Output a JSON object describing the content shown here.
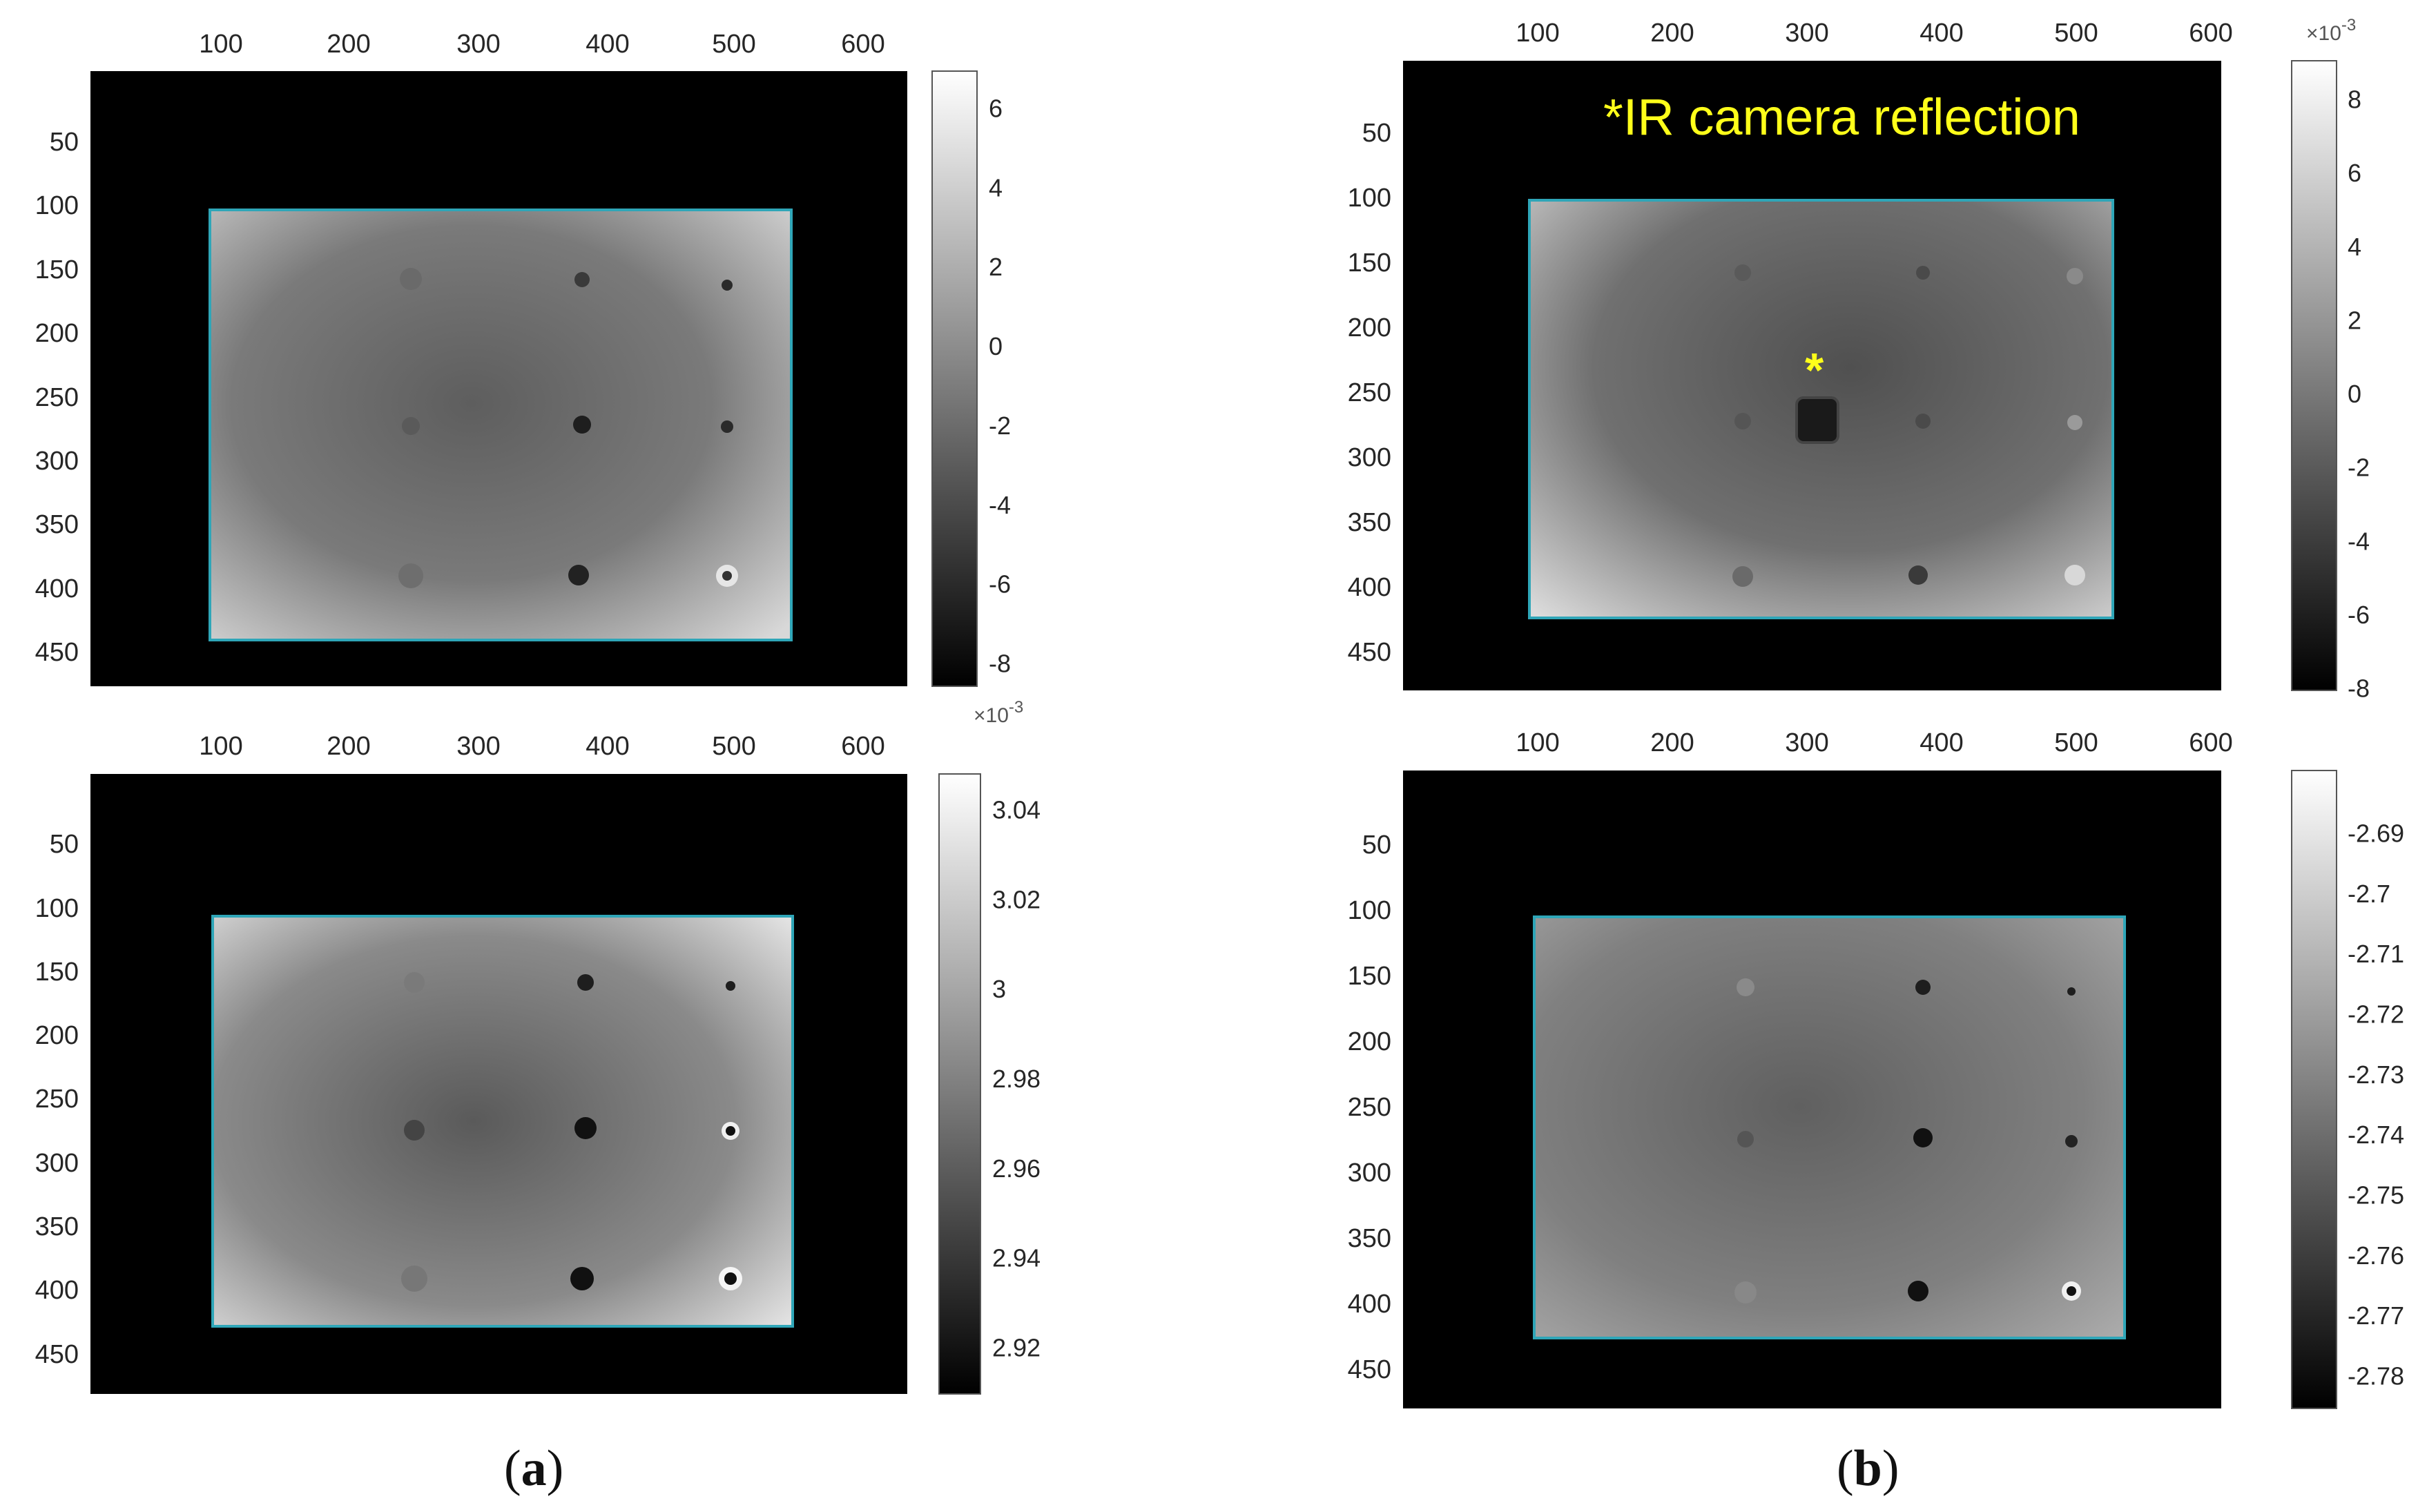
{
  "x_axis_ticks": [
    "100",
    "200",
    "300",
    "400",
    "500",
    "600"
  ],
  "y_axis_ticks": [
    "50",
    "100",
    "150",
    "200",
    "250",
    "300",
    "350",
    "400",
    "450"
  ],
  "panels": [
    {
      "id": "a-top",
      "colorbar": {
        "ticks": [
          "6",
          "4",
          "2",
          "0",
          "-2",
          "-4",
          "-6",
          "-8"
        ]
      },
      "exponent": null
    },
    {
      "id": "a-bottom",
      "colorbar": {
        "ticks": [
          "3.04",
          "3.02",
          "3",
          "2.98",
          "2.96",
          "2.94",
          "2.92"
        ]
      },
      "exponent": "×10-3"
    },
    {
      "id": "b-top",
      "colorbar": {
        "ticks": [
          "8",
          "6",
          "4",
          "2",
          "0",
          "-2",
          "-4",
          "-6",
          "-8"
        ]
      },
      "exponent": "×10-3",
      "annotation": "*IR camera reflection",
      "marker": "*"
    },
    {
      "id": "b-bottom",
      "colorbar": {
        "ticks": [
          "-2.69",
          "-2.7",
          "-2.71",
          "-2.72",
          "-2.73",
          "-2.74",
          "-2.75",
          "-2.76",
          "-2.77",
          "-2.78"
        ]
      },
      "exponent": null
    }
  ],
  "captions": {
    "a": {
      "open": "(",
      "letter": "a",
      "close": ")"
    },
    "b": {
      "open": "(",
      "letter": "b",
      "close": ")"
    }
  },
  "colors": {
    "frame": "#000000",
    "roi_border": "#2fa6b8",
    "annotation": "#ffff1a"
  }
}
